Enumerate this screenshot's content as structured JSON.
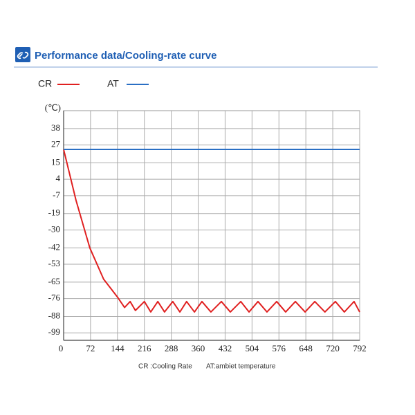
{
  "chart_data": {
    "type": "line",
    "title": "Performance data/Cooling-rate curve",
    "y_label": "(℃)",
    "notes": [
      "CR :Cooling Rate",
      "AT:ambiet temperature"
    ],
    "xlim": [
      0,
      792
    ],
    "xticks": [
      0,
      72,
      144,
      216,
      288,
      360,
      432,
      504,
      576,
      648,
      720,
      792
    ],
    "ylim": [
      -104,
      50
    ],
    "yticks": [
      38,
      27,
      15,
      4,
      -7,
      -19,
      -30,
      -42,
      -53,
      -65,
      -76,
      -88,
      -99
    ],
    "grid": true,
    "series": [
      {
        "name": "CR",
        "color": "#e02020",
        "x": [
          0,
          33,
          70,
          107,
          144,
          163,
          178,
          192,
          216,
          233,
          252,
          270,
          292,
          311,
          329,
          350,
          370,
          394,
          422,
          446,
          474,
          496,
          520,
          544,
          570,
          594,
          620,
          646,
          672,
          699,
          727,
          751,
          777,
          792
        ],
        "values": [
          24,
          -10,
          -42,
          -63,
          -75,
          -82,
          -78,
          -84,
          -78,
          -85,
          -78,
          -85,
          -78,
          -85,
          -78,
          -85,
          -78,
          -85,
          -78,
          -85,
          -78,
          -85,
          -78,
          -85,
          -78,
          -85,
          -78,
          -85,
          -78,
          -85,
          -78,
          -85,
          -78,
          -85
        ]
      },
      {
        "name": "AT",
        "color": "#2a6fc4",
        "x": [
          0,
          792
        ],
        "values": [
          24,
          24
        ]
      }
    ]
  }
}
